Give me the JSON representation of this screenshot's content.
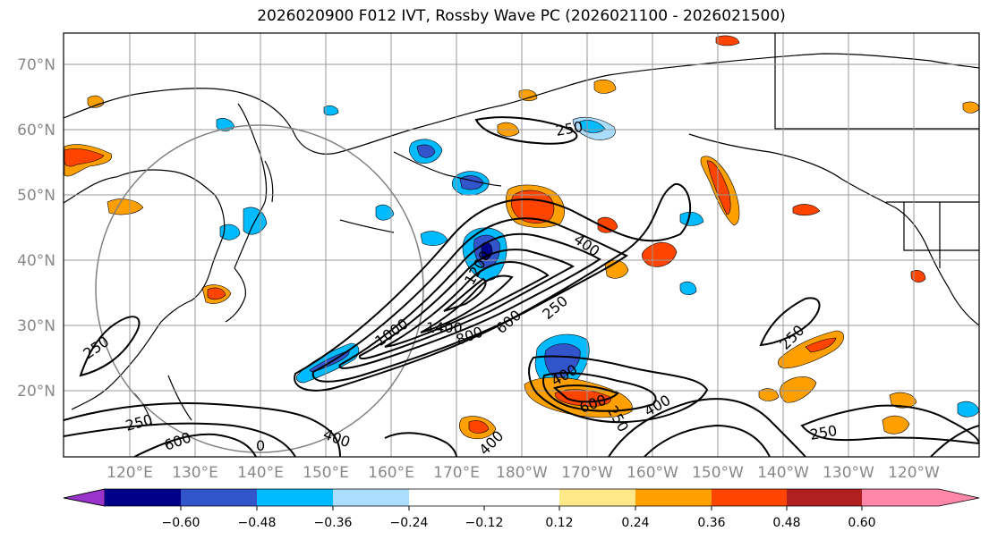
{
  "title": "2026020900 F012 IVT, Rossby Wave PC (2026021100 - 2026021500)",
  "lat_labels": [
    "70°N",
    "60°N",
    "50°N",
    "40°N",
    "30°N",
    "20°N"
  ],
  "lon_labels": [
    "120°E",
    "130°E",
    "140°E",
    "150°E",
    "160°E",
    "170°E",
    "180°W",
    "170°W",
    "160°W",
    "150°W",
    "140°W",
    "130°W",
    "120°W"
  ],
  "colorbar": {
    "colors": [
      "#9933cc",
      "#000088",
      "#3355cc",
      "#00bbff",
      "#aaddff",
      "#ffffff",
      "#ffe888",
      "#ffa000",
      "#ff4400",
      "#b02020",
      "#ff88aa"
    ],
    "tick_labels": [
      "−0.60",
      "−0.48",
      "−0.36",
      "−0.24",
      "−0.12",
      "0.12",
      "0.24",
      "0.36",
      "0.48",
      "0.60"
    ]
  },
  "contour_labels": [
    "250",
    "250",
    "400",
    "1200",
    "1000",
    "1400",
    "800",
    "600",
    "250",
    "400",
    "600",
    "250",
    "400",
    "250",
    "250",
    "250",
    "600",
    "0",
    "400",
    "400"
  ]
}
